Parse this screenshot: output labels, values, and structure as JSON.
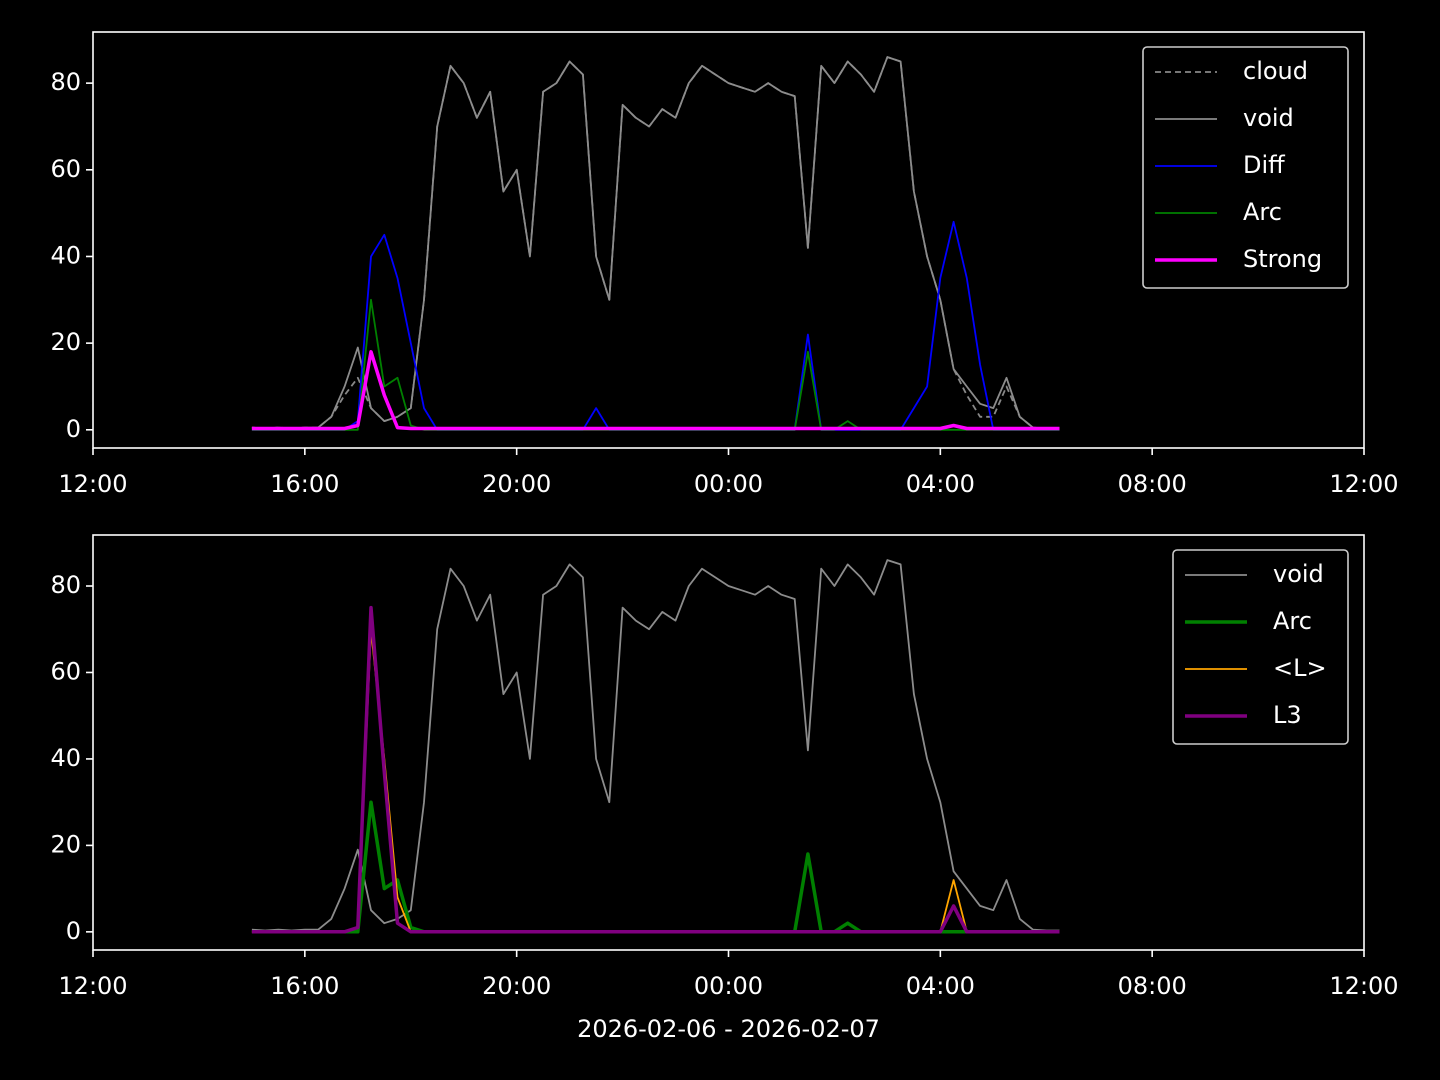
{
  "chart_data": [
    {
      "type": "line",
      "x": [
        15,
        15.25,
        15.5,
        15.75,
        16,
        16.25,
        16.5,
        16.75,
        17,
        17.25,
        17.5,
        17.75,
        18,
        18.25,
        18.5,
        18.75,
        19,
        19.25,
        19.5,
        19.75,
        20,
        20.25,
        20.5,
        20.75,
        21,
        21.25,
        21.5,
        21.75,
        22,
        22.25,
        22.5,
        22.75,
        23,
        23.25,
        23.5,
        23.75,
        24,
        24.25,
        24.5,
        24.75,
        25,
        25.25,
        25.5,
        25.75,
        26,
        26.25,
        26.5,
        26.75,
        27,
        27.25,
        27.5,
        27.75,
        28,
        28.25,
        28.5,
        28.75,
        29,
        29.25,
        29.5,
        29.75,
        30,
        30.25
      ],
      "series": [
        {
          "name": "cloud",
          "color": "#888888",
          "style": "dashed",
          "linewidth": 1.8,
          "values": [
            0.5,
            0.3,
            0.5,
            0.3,
            0.5,
            0.5,
            3,
            8,
            12,
            5,
            2,
            3,
            5,
            30,
            70,
            84,
            80,
            72,
            78,
            55,
            60,
            40,
            78,
            80,
            85,
            82,
            40,
            30,
            75,
            72,
            70,
            74,
            72,
            80,
            84,
            82,
            80,
            79,
            78,
            80,
            78,
            77,
            42,
            84,
            80,
            85,
            82,
            78,
            86,
            85,
            55,
            40,
            30,
            14,
            8,
            3,
            3,
            10,
            3,
            0.5,
            0.3,
            0.3
          ]
        },
        {
          "name": "void",
          "color": "#8c8c8c",
          "style": "solid",
          "linewidth": 1.8,
          "values": [
            0.5,
            0.3,
            0.5,
            0.3,
            0.5,
            0.5,
            3,
            10,
            19,
            5,
            2,
            3,
            5,
            30,
            70,
            84,
            80,
            72,
            78,
            55,
            60,
            40,
            78,
            80,
            85,
            82,
            40,
            30,
            75,
            72,
            70,
            74,
            72,
            80,
            84,
            82,
            80,
            79,
            78,
            80,
            78,
            77,
            42,
            84,
            80,
            85,
            82,
            78,
            86,
            85,
            55,
            40,
            30,
            14,
            10,
            6,
            5,
            12,
            3,
            0.5,
            0.3,
            0.3
          ]
        },
        {
          "name": "Diff",
          "color": "#0000ff",
          "style": "solid",
          "linewidth": 1.8,
          "values": [
            0,
            0,
            0,
            0,
            0,
            0,
            0,
            0,
            2,
            40,
            45,
            35,
            20,
            5,
            0,
            0,
            0,
            0,
            0,
            0,
            0,
            0,
            0,
            0,
            0,
            0,
            5,
            0,
            0,
            0,
            0,
            0,
            0,
            0,
            0,
            0,
            0,
            0,
            0,
            0,
            0,
            0,
            22,
            0,
            0,
            0,
            0,
            0,
            0,
            0,
            5,
            10,
            35,
            48,
            35,
            15,
            0,
            0,
            0,
            0,
            0,
            0
          ]
        },
        {
          "name": "Arc",
          "color": "#008000",
          "style": "solid",
          "linewidth": 1.8,
          "values": [
            0,
            0,
            0,
            0,
            0,
            0,
            0,
            0,
            0,
            30,
            10,
            12,
            1,
            0,
            0,
            0,
            0,
            0,
            0,
            0,
            0,
            0,
            0,
            0,
            0,
            0,
            0,
            0,
            0,
            0,
            0,
            0,
            0,
            0,
            0,
            0,
            0,
            0,
            0,
            0,
            0,
            0,
            18,
            0,
            0,
            2,
            0,
            0,
            0,
            0,
            0,
            0,
            0,
            0,
            0,
            0,
            0,
            0,
            0,
            0,
            0,
            0
          ]
        },
        {
          "name": "Strong",
          "color": "#ff00ff",
          "style": "solid",
          "linewidth": 3.5,
          "values": [
            0.3,
            0.3,
            0.3,
            0.3,
            0.3,
            0.3,
            0.3,
            0.3,
            1,
            18,
            8,
            0.5,
            0.3,
            0.3,
            0.3,
            0.3,
            0.3,
            0.3,
            0.3,
            0.3,
            0.3,
            0.3,
            0.3,
            0.3,
            0.3,
            0.3,
            0.3,
            0.3,
            0.3,
            0.3,
            0.3,
            0.3,
            0.3,
            0.3,
            0.3,
            0.3,
            0.3,
            0.3,
            0.3,
            0.3,
            0.3,
            0.3,
            0.3,
            0.3,
            0.3,
            0.3,
            0.3,
            0.3,
            0.3,
            0.3,
            0.3,
            0.3,
            0.3,
            1,
            0.3,
            0.3,
            0.3,
            0.3,
            0.3,
            0.3,
            0.3,
            0.3
          ]
        }
      ],
      "xlim": [
        12,
        36
      ],
      "ylim": [
        -4.2,
        91.8
      ],
      "xticks": [
        {
          "value": 12,
          "label": "12:00"
        },
        {
          "value": 16,
          "label": "16:00"
        },
        {
          "value": 20,
          "label": "20:00"
        },
        {
          "value": 24,
          "label": "00:00"
        },
        {
          "value": 28,
          "label": "04:00"
        },
        {
          "value": 32,
          "label": "08:00"
        },
        {
          "value": 36,
          "label": "12:00"
        }
      ],
      "yticks": [
        0,
        20,
        40,
        60,
        80
      ],
      "legend": "upper right"
    },
    {
      "type": "line",
      "x": [
        15,
        15.25,
        15.5,
        15.75,
        16,
        16.25,
        16.5,
        16.75,
        17,
        17.25,
        17.5,
        17.75,
        18,
        18.25,
        18.5,
        18.75,
        19,
        19.25,
        19.5,
        19.75,
        20,
        20.25,
        20.5,
        20.75,
        21,
        21.25,
        21.5,
        21.75,
        22,
        22.25,
        22.5,
        22.75,
        23,
        23.25,
        23.5,
        23.75,
        24,
        24.25,
        24.5,
        24.75,
        25,
        25.25,
        25.5,
        25.75,
        26,
        26.25,
        26.5,
        26.75,
        27,
        27.25,
        27.5,
        27.75,
        28,
        28.25,
        28.5,
        28.75,
        29,
        29.25,
        29.5,
        29.75,
        30,
        30.25
      ],
      "xlabel": "2026-02-06 - 2026-02-07",
      "series": [
        {
          "name": "void",
          "color": "#8c8c8c",
          "style": "solid",
          "linewidth": 1.8,
          "values": [
            0.5,
            0.3,
            0.5,
            0.3,
            0.5,
            0.5,
            3,
            10,
            19,
            5,
            2,
            3,
            5,
            30,
            70,
            84,
            80,
            72,
            78,
            55,
            60,
            40,
            78,
            80,
            85,
            82,
            40,
            30,
            75,
            72,
            70,
            74,
            72,
            80,
            84,
            82,
            80,
            79,
            78,
            80,
            78,
            77,
            42,
            84,
            80,
            85,
            82,
            78,
            86,
            85,
            55,
            40,
            30,
            14,
            10,
            6,
            5,
            12,
            3,
            0.5,
            0.3,
            0.3
          ]
        },
        {
          "name": "Arc",
          "color": "#008000",
          "style": "solid",
          "linewidth": 3.5,
          "values": [
            0,
            0,
            0,
            0,
            0,
            0,
            0,
            0,
            0,
            30,
            10,
            12,
            1,
            0,
            0,
            0,
            0,
            0,
            0,
            0,
            0,
            0,
            0,
            0,
            0,
            0,
            0,
            0,
            0,
            0,
            0,
            0,
            0,
            0,
            0,
            0,
            0,
            0,
            0,
            0,
            0,
            0,
            18,
            0,
            0,
            2,
            0,
            0,
            0,
            0,
            0,
            0,
            0,
            0,
            0,
            0,
            0,
            0,
            0,
            0,
            0,
            0
          ]
        },
        {
          "name": "<L>",
          "color": "#ffa500",
          "style": "solid",
          "linewidth": 1.8,
          "values": [
            0,
            0,
            0,
            0,
            0,
            0,
            0,
            0,
            1,
            70,
            40,
            8,
            0,
            0,
            0,
            0,
            0,
            0,
            0,
            0,
            0,
            0,
            0,
            0,
            0,
            0,
            0,
            0,
            0,
            0,
            0,
            0,
            0,
            0,
            0,
            0,
            0,
            0,
            0,
            0,
            0,
            0,
            0,
            0,
            0,
            0,
            0,
            0,
            0,
            0,
            0,
            0,
            0,
            12,
            0,
            0,
            0,
            0,
            0,
            0,
            0,
            0
          ]
        },
        {
          "name": "L3",
          "color": "#800080",
          "style": "solid",
          "linewidth": 3.5,
          "values": [
            0,
            0,
            0,
            0,
            0,
            0,
            0,
            0,
            1,
            75,
            37,
            2,
            0,
            0,
            0,
            0,
            0,
            0,
            0,
            0,
            0,
            0,
            0,
            0,
            0,
            0,
            0,
            0,
            0,
            0,
            0,
            0,
            0,
            0,
            0,
            0,
            0,
            0,
            0,
            0,
            0,
            0,
            0,
            0,
            0,
            0,
            0,
            0,
            0,
            0,
            0,
            0,
            0,
            6,
            0,
            0,
            0,
            0,
            0,
            0,
            0,
            0
          ]
        }
      ],
      "xlim": [
        12,
        36
      ],
      "ylim": [
        -4.2,
        91.8
      ],
      "xticks": [
        {
          "value": 12,
          "label": "12:00"
        },
        {
          "value": 16,
          "label": "16:00"
        },
        {
          "value": 20,
          "label": "20:00"
        },
        {
          "value": 24,
          "label": "00:00"
        },
        {
          "value": 28,
          "label": "04:00"
        },
        {
          "value": 32,
          "label": "08:00"
        },
        {
          "value": 36,
          "label": "12:00"
        }
      ],
      "yticks": [
        0,
        20,
        40,
        60,
        80
      ],
      "legend": "upper right"
    }
  ]
}
